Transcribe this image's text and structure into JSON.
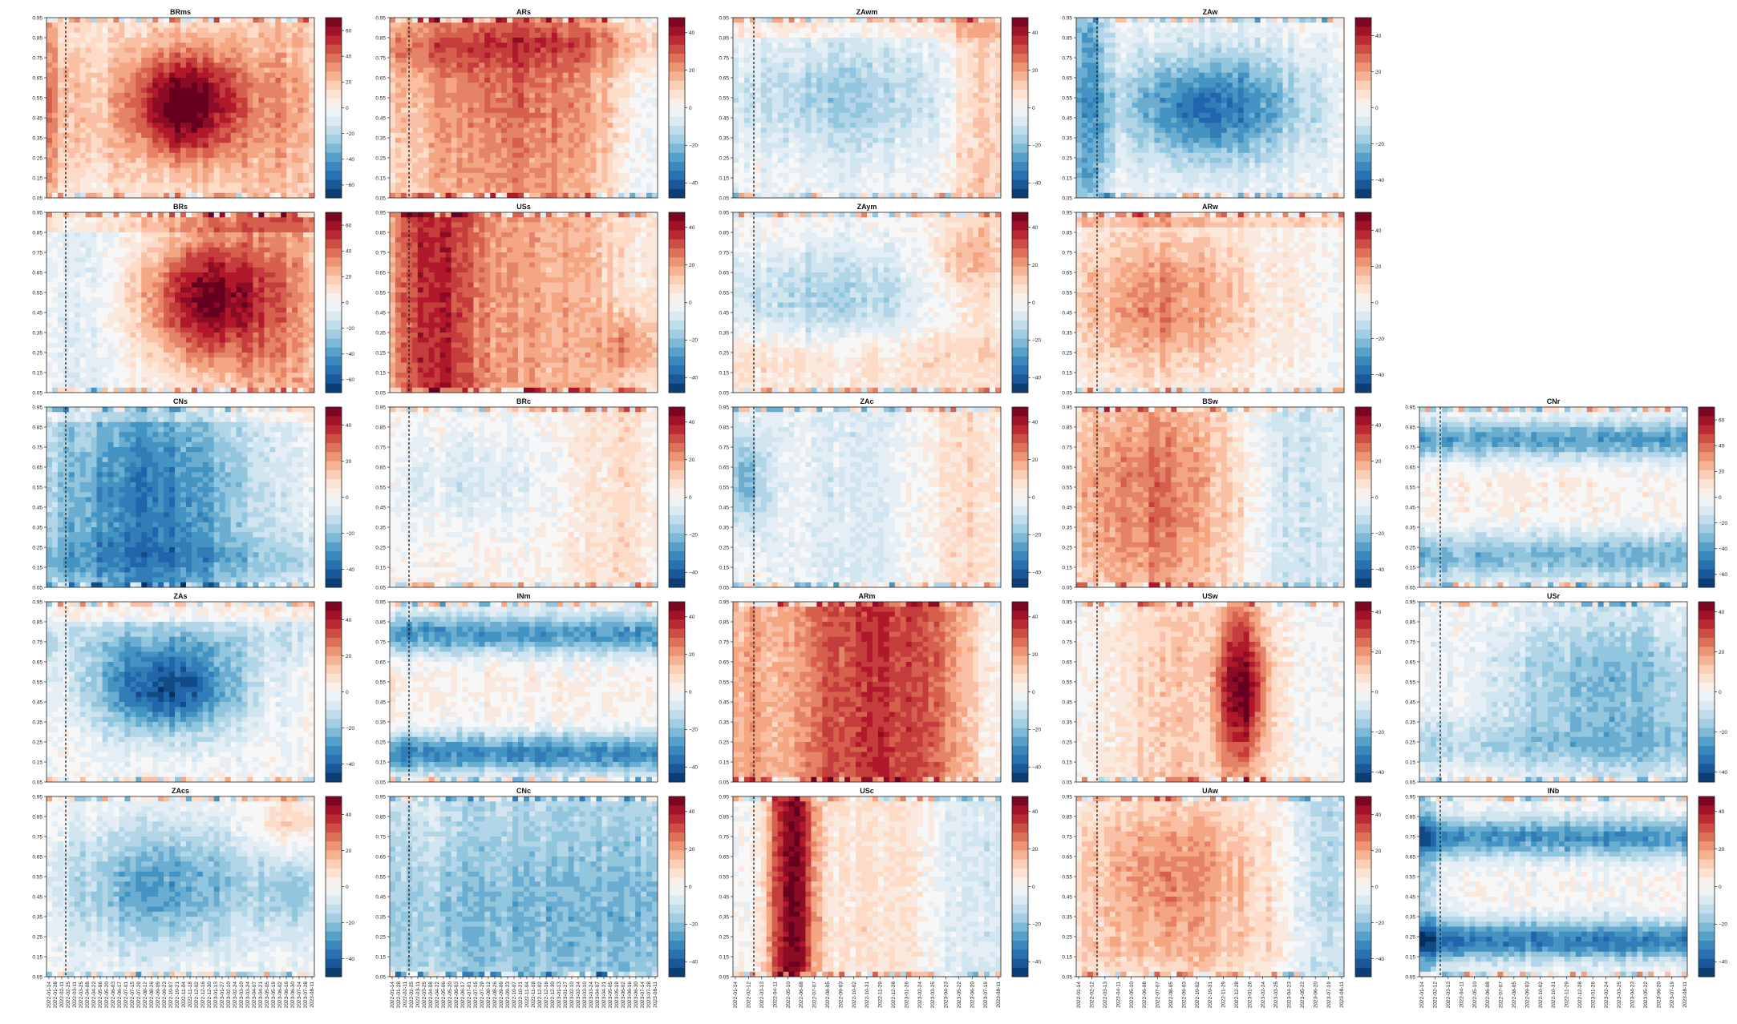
{
  "chart_data": {
    "type": "heatmap",
    "colormap": {
      "negative": [
        "#053061",
        "#2166ac",
        "#4393c3",
        "#92c5de",
        "#d1e5f0"
      ],
      "zero": "#f7f7f7",
      "positive": [
        "#fddbc7",
        "#f4a582",
        "#d6604d",
        "#b2182b",
        "#67001f"
      ]
    },
    "y_ticks": [
      "0.05",
      "0.15",
      "0.25",
      "0.35",
      "0.45",
      "0.55",
      "0.65",
      "0.75",
      "0.85",
      "0.95"
    ],
    "x_ticks": {
      "set_a": [
        "2022-01-14",
        "2022-01-28",
        "2022-02-11",
        "2022-02-25",
        "2022-03-11",
        "2022-03-25",
        "2022-04-08",
        "2022-04-22",
        "2022-05-06",
        "2022-05-20",
        "2022-06-03",
        "2022-06-17",
        "2022-07-01",
        "2022-07-15",
        "2022-07-29",
        "2022-08-12",
        "2022-08-26",
        "2022-09-09",
        "2022-09-23",
        "2022-10-07",
        "2022-10-21",
        "2022-11-04",
        "2022-11-18",
        "2022-12-02",
        "2022-12-16",
        "2022-12-30",
        "2023-01-13",
        "2023-01-27",
        "2023-02-10",
        "2023-02-24",
        "2023-03-10",
        "2023-03-24",
        "2023-04-07",
        "2023-04-21",
        "2023-05-05",
        "2023-05-19",
        "2023-06-02",
        "2023-06-16",
        "2023-06-30",
        "2023-07-14",
        "2023-07-28",
        "2023-08-11"
      ],
      "set_b": [
        "2022-01-14",
        "2022-02-12",
        "2022-03-13",
        "2022-04-11",
        "2022-05-10",
        "2022-06-08",
        "2022-07-07",
        "2022-08-05",
        "2022-09-03",
        "2022-10-02",
        "2022-10-31",
        "2022-11-29",
        "2022-12-28",
        "2023-01-26",
        "2023-02-24",
        "2023-03-25",
        "2023-04-23",
        "2023-05-22",
        "2023-06-20",
        "2023-07-19",
        "2023-08-11"
      ]
    },
    "panels": [
      {
        "title": "BRms",
        "col": 0,
        "row": 0,
        "cb_ticks": [
          60,
          40,
          20,
          0,
          -20,
          -40,
          -60
        ],
        "vmax": 70
      },
      {
        "title": "BRs",
        "col": 0,
        "row": 1,
        "cb_ticks": [
          60,
          40,
          20,
          0,
          -20,
          -40,
          -60
        ],
        "vmax": 70
      },
      {
        "title": "CNs",
        "col": 0,
        "row": 2,
        "cb_ticks": [
          40,
          20,
          0,
          -20,
          -40
        ],
        "vmax": 50
      },
      {
        "title": "ZAs",
        "col": 0,
        "row": 3,
        "cb_ticks": [
          40,
          20,
          0,
          -20,
          -40
        ],
        "vmax": 50
      },
      {
        "title": "ZAcs",
        "col": 0,
        "row": 4,
        "cb_ticks": [
          40,
          20,
          0,
          -20,
          -40
        ],
        "vmax": 50
      },
      {
        "title": "ARs",
        "col": 1,
        "row": 0,
        "cb_ticks": [
          40,
          20,
          0,
          -20,
          -40
        ],
        "vmax": 48
      },
      {
        "title": "USs",
        "col": 1,
        "row": 1,
        "cb_ticks": [
          40,
          20,
          0,
          -20,
          -40
        ],
        "vmax": 48
      },
      {
        "title": "BRc",
        "col": 1,
        "row": 2,
        "cb_ticks": [
          40,
          20,
          0,
          -20,
          -40
        ],
        "vmax": 48
      },
      {
        "title": "INm",
        "col": 1,
        "row": 3,
        "cb_ticks": [
          40,
          20,
          0,
          -20,
          -40
        ],
        "vmax": 48
      },
      {
        "title": "CNc",
        "col": 1,
        "row": 4,
        "cb_ticks": [
          40,
          20,
          0,
          -20,
          -40
        ],
        "vmax": 48
      },
      {
        "title": "ZAwm",
        "col": 2,
        "row": 0,
        "cb_ticks": [
          40,
          20,
          0,
          -20,
          -40
        ],
        "vmax": 48
      },
      {
        "title": "ZAym",
        "col": 2,
        "row": 1,
        "cb_ticks": [
          40,
          20,
          0,
          -20,
          -40
        ],
        "vmax": 48
      },
      {
        "title": "ZAc",
        "col": 2,
        "row": 2,
        "cb_ticks": [
          40,
          20,
          0,
          -20,
          -40
        ],
        "vmax": 48
      },
      {
        "title": "ARm",
        "col": 2,
        "row": 3,
        "cb_ticks": [
          40,
          20,
          0,
          -20,
          -40
        ],
        "vmax": 48
      },
      {
        "title": "USc",
        "col": 2,
        "row": 4,
        "cb_ticks": [
          40,
          20,
          0,
          -20,
          -40
        ],
        "vmax": 48
      },
      {
        "title": "ZAw",
        "col": 3,
        "row": 0,
        "cb_ticks": [
          40,
          20,
          0,
          -20,
          -40
        ],
        "vmax": 50
      },
      {
        "title": "ARw",
        "col": 3,
        "row": 1,
        "cb_ticks": [
          40,
          20,
          0,
          -20,
          -40
        ],
        "vmax": 50
      },
      {
        "title": "BSw",
        "col": 3,
        "row": 2,
        "cb_ticks": [
          40,
          20,
          0,
          -20,
          -40
        ],
        "vmax": 50
      },
      {
        "title": "USw",
        "col": 3,
        "row": 3,
        "cb_ticks": [
          40,
          20,
          0,
          -20,
          -40
        ],
        "vmax": 45
      },
      {
        "title": "UAw",
        "col": 3,
        "row": 4,
        "cb_ticks": [
          40,
          20,
          0,
          -20,
          -40
        ],
        "vmax": 50
      },
      {
        "title": "CNr",
        "col": 4,
        "row": 2,
        "cb_ticks": [
          60,
          40,
          20,
          0,
          -20,
          -40,
          -60
        ],
        "vmax": 70
      },
      {
        "title": "USr",
        "col": 4,
        "row": 3,
        "cb_ticks": [
          40,
          20,
          0,
          -20,
          -40
        ],
        "vmax": 45
      },
      {
        "title": "INb",
        "col": 4,
        "row": 4,
        "cb_ticks": [
          40,
          20,
          0,
          -20,
          -40
        ],
        "vmax": 48
      }
    ],
    "dashed_marker_date": "2022-02-24",
    "y_range": [
      0.05,
      0.95
    ]
  }
}
